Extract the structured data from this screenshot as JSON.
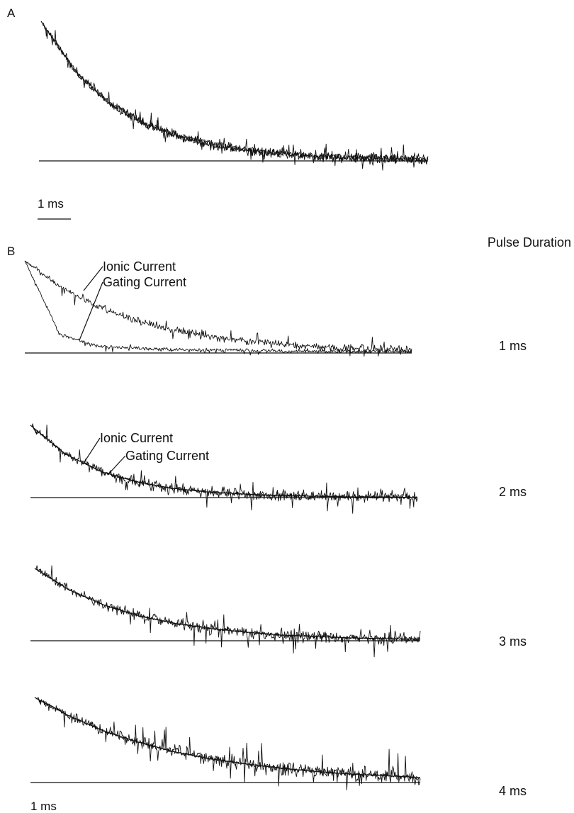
{
  "figure": {
    "panel_a_label": "A",
    "panel_b_label": "B",
    "panel_a_scalebar_label": "1 ms",
    "panel_b_scalebar_label": "1 ms",
    "pulse_duration_title": "Pulse Duration"
  },
  "chart_data": [
    {
      "type": "line",
      "panel": "A",
      "series": [
        {
          "x": [
            0,
            1,
            2,
            3,
            4,
            5,
            6,
            7,
            8,
            9,
            10,
            11
          ],
          "values": [
            1.0,
            0.63,
            0.4,
            0.26,
            0.17,
            0.11,
            0.07,
            0.05,
            0.03,
            0.02,
            0.015,
            0.01
          ]
        }
      ],
      "overlapping_traces": 3
    },
    {
      "type": "line",
      "panel": "B",
      "pulse_duration": "1 ms",
      "annotations": [
        "Ionic Current",
        "Gating Current"
      ],
      "series": [
        {
          "name": "Ionic Current",
          "x": [
            0,
            1,
            2,
            3,
            4,
            5,
            6,
            7,
            8,
            9,
            10,
            11
          ],
          "values": [
            1.0,
            0.72,
            0.52,
            0.37,
            0.27,
            0.19,
            0.14,
            0.1,
            0.07,
            0.05,
            0.04,
            0.03
          ]
        },
        {
          "name": "Gating Current",
          "x": [
            0,
            1,
            2,
            3,
            4,
            5,
            6,
            7,
            8,
            9,
            10,
            11
          ],
          "values": [
            1.0,
            0.2,
            0.08,
            0.05,
            0.04,
            0.03,
            0.03,
            0.02,
            0.02,
            0.02,
            0.02,
            0.02
          ]
        }
      ]
    },
    {
      "type": "line",
      "panel": "B",
      "pulse_duration": "2 ms",
      "annotations": [
        "Ionic Current",
        "Gating Current"
      ],
      "series": [
        {
          "name": "Ionic Current",
          "x": [
            0,
            1,
            2,
            3,
            4,
            5,
            6,
            7,
            8,
            9,
            10,
            11
          ],
          "values": [
            1.0,
            0.6,
            0.36,
            0.22,
            0.13,
            0.08,
            0.05,
            0.03,
            0.02,
            0.01,
            0.01,
            0.0
          ]
        },
        {
          "name": "Gating Current",
          "x": [
            0,
            1,
            2,
            3,
            4,
            5,
            6,
            7,
            8,
            9,
            10,
            11
          ],
          "values": [
            1.0,
            0.6,
            0.36,
            0.22,
            0.13,
            0.08,
            0.05,
            0.03,
            0.02,
            0.01,
            0.01,
            0.0
          ]
        }
      ]
    },
    {
      "type": "line",
      "panel": "B",
      "pulse_duration": "3 ms",
      "series": [
        {
          "x": [
            0,
            1,
            2,
            3,
            4,
            5,
            6,
            7,
            8,
            9,
            10,
            11
          ],
          "values": [
            1.0,
            0.7,
            0.49,
            0.34,
            0.24,
            0.17,
            0.12,
            0.08,
            0.06,
            0.04,
            0.03,
            0.02
          ]
        },
        {
          "x": [
            0,
            1,
            2,
            3,
            4,
            5,
            6,
            7,
            8,
            9,
            10,
            11
          ],
          "values": [
            1.0,
            0.7,
            0.49,
            0.34,
            0.24,
            0.17,
            0.12,
            0.08,
            0.06,
            0.04,
            0.03,
            0.02
          ]
        }
      ]
    },
    {
      "type": "line",
      "panel": "B",
      "pulse_duration": "4 ms",
      "series": [
        {
          "x": [
            0,
            1,
            2,
            3,
            4,
            5,
            6,
            7,
            8,
            9,
            10,
            11
          ],
          "values": [
            1.0,
            0.78,
            0.6,
            0.47,
            0.36,
            0.28,
            0.22,
            0.17,
            0.13,
            0.1,
            0.08,
            0.06
          ]
        },
        {
          "x": [
            0,
            1,
            2,
            3,
            4,
            5,
            6,
            7,
            8,
            9,
            10,
            11
          ],
          "values": [
            1.0,
            0.78,
            0.6,
            0.47,
            0.36,
            0.28,
            0.22,
            0.17,
            0.13,
            0.1,
            0.08,
            0.06
          ]
        }
      ]
    }
  ]
}
